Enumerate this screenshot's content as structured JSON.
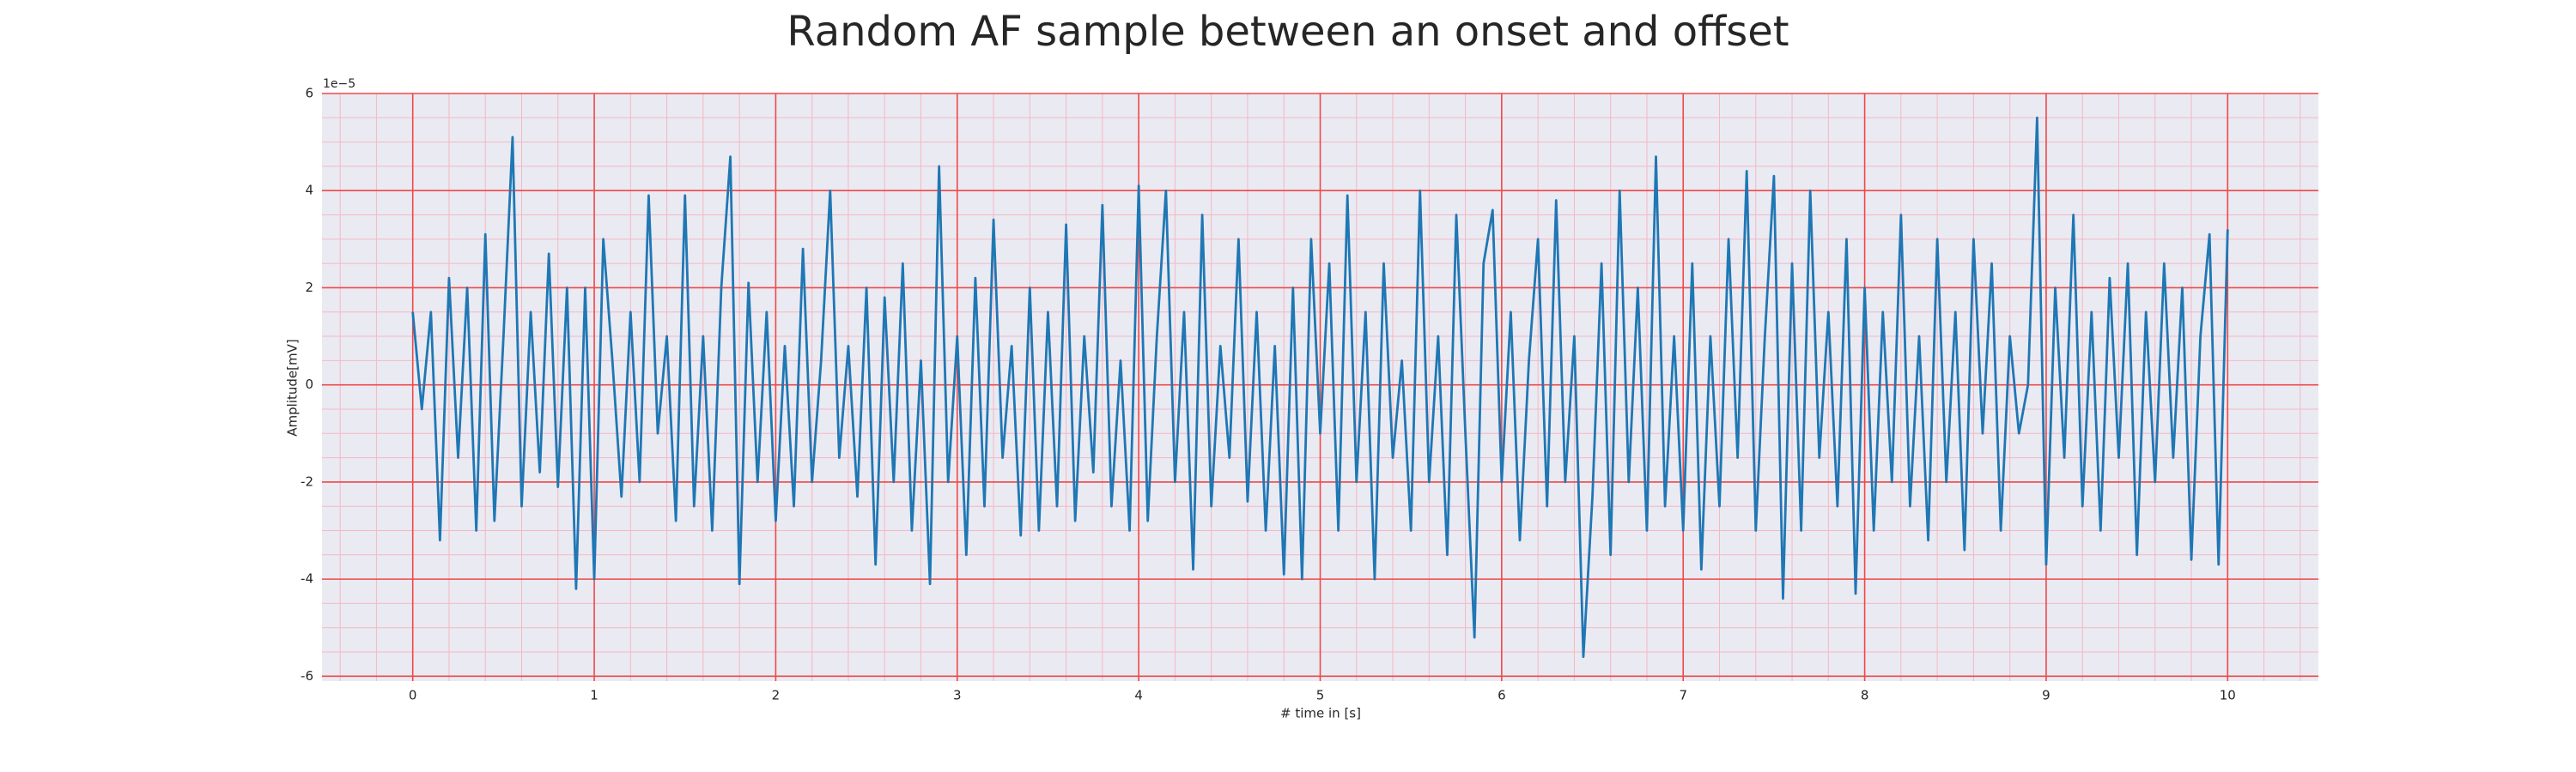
{
  "chart_data": {
    "type": "line",
    "title": "Random AF sample between an onset and offset",
    "xlabel": "# time in [s]",
    "ylabel": "Amplitude[mV]",
    "offset_text": "1e−5",
    "color": "#1f77b4",
    "background": "#eaeaf2",
    "grid": true,
    "grid_color": "#f04848",
    "minor_grid_color": "#f4b8c4",
    "xlim": [
      -0.5,
      10.5
    ],
    "ylim": [
      -6.1,
      6.0
    ],
    "xticks": [
      0,
      1,
      2,
      3,
      4,
      5,
      6,
      7,
      8,
      9,
      10
    ],
    "yticks": [
      -6,
      -4,
      -2,
      0,
      2,
      4,
      6
    ],
    "xminorticks": [
      -0.4,
      -0.2,
      0,
      0.2,
      0.4,
      0.6,
      0.8,
      1,
      1.2,
      1.4,
      1.6,
      1.8,
      2,
      2.2,
      2.4,
      2.6,
      2.8,
      3,
      3.2,
      3.4,
      3.6,
      3.8,
      4,
      4.2,
      4.4,
      4.6,
      4.8,
      5,
      5.2,
      5.4,
      5.6,
      5.8,
      6,
      6.2,
      6.4,
      6.6,
      6.8,
      7,
      7.2,
      7.4,
      7.6,
      7.8,
      8,
      8.2,
      8.4,
      8.6,
      8.8,
      9,
      9.2,
      9.4,
      9.6,
      9.8,
      10,
      10.2,
      10.4
    ],
    "yminorticks": [
      -6,
      -5.5,
      -5,
      -4.5,
      -4,
      -3.5,
      -3,
      -2.5,
      -2,
      -1.5,
      -1,
      -0.5,
      0,
      0.5,
      1,
      1.5,
      2,
      2.5,
      3,
      3.5,
      4,
      4.5,
      5,
      5.5,
      6
    ],
    "x": [
      0,
      0.05,
      0.1,
      0.15,
      0.2,
      0.25,
      0.3,
      0.35,
      0.4,
      0.45,
      0.5,
      0.55,
      0.6,
      0.65,
      0.7,
      0.75,
      0.8,
      0.85,
      0.9,
      0.95,
      1,
      1.05,
      1.1,
      1.15,
      1.2,
      1.25,
      1.3,
      1.35,
      1.4,
      1.45,
      1.5,
      1.55,
      1.6,
      1.65,
      1.7,
      1.75,
      1.8,
      1.85,
      1.9,
      1.95,
      2,
      2.05,
      2.1,
      2.15,
      2.2,
      2.25,
      2.3,
      2.35,
      2.4,
      2.45,
      2.5,
      2.55,
      2.6,
      2.65,
      2.7,
      2.75,
      2.8,
      2.85,
      2.9,
      2.95,
      3,
      3.05,
      3.1,
      3.15,
      3.2,
      3.25,
      3.3,
      3.35,
      3.4,
      3.45,
      3.5,
      3.55,
      3.6,
      3.65,
      3.7,
      3.75,
      3.8,
      3.85,
      3.9,
      3.95,
      4,
      4.05,
      4.1,
      4.15,
      4.2,
      4.25,
      4.3,
      4.35,
      4.4,
      4.45,
      4.5,
      4.55,
      4.6,
      4.65,
      4.7,
      4.75,
      4.8,
      4.85,
      4.9,
      4.95,
      5,
      5.05,
      5.1,
      5.15,
      5.2,
      5.25,
      5.3,
      5.35,
      5.4,
      5.45,
      5.5,
      5.55,
      5.6,
      5.65,
      5.7,
      5.75,
      5.8,
      5.85,
      5.9,
      5.95,
      6,
      6.05,
      6.1,
      6.15,
      6.2,
      6.25,
      6.3,
      6.35,
      6.4,
      6.45,
      6.5,
      6.55,
      6.6,
      6.65,
      6.7,
      6.75,
      6.8,
      6.85,
      6.9,
      6.95,
      7,
      7.05,
      7.1,
      7.15,
      7.2,
      7.25,
      7.3,
      7.35,
      7.4,
      7.45,
      7.5,
      7.55,
      7.6,
      7.65,
      7.7,
      7.75,
      7.8,
      7.85,
      7.9,
      7.95,
      8,
      8.05,
      8.1,
      8.15,
      8.2,
      8.25,
      8.3,
      8.35,
      8.4,
      8.45,
      8.5,
      8.55,
      8.6,
      8.65,
      8.7,
      8.75,
      8.8,
      8.85,
      8.9,
      8.95,
      9,
      9.05,
      9.1,
      9.15,
      9.2,
      9.25,
      9.3,
      9.35,
      9.4,
      9.45,
      9.5,
      9.55,
      9.6,
      9.65,
      9.7,
      9.75,
      9.8,
      9.85,
      9.9,
      9.95,
      10
    ],
    "values": [
      1.5,
      -0.5,
      1.5,
      -3.2,
      2.2,
      -1.5,
      2.0,
      -3.0,
      3.1,
      -2.8,
      1.0,
      5.1,
      -2.5,
      1.5,
      -1.8,
      2.7,
      -2.1,
      2.0,
      -4.2,
      2.0,
      -4.0,
      3.0,
      0.5,
      -2.3,
      1.5,
      -2.0,
      3.9,
      -1.0,
      1.0,
      -2.8,
      3.9,
      -2.5,
      1.0,
      -3.0,
      2.0,
      4.7,
      -4.1,
      2.1,
      -2.0,
      1.5,
      -2.8,
      0.8,
      -2.5,
      2.8,
      -2.0,
      0.5,
      4.0,
      -1.5,
      0.8,
      -2.3,
      2.0,
      -3.7,
      1.8,
      -2.0,
      2.5,
      -3.0,
      0.5,
      -4.1,
      4.5,
      -2.0,
      1.0,
      -3.5,
      2.2,
      -2.5,
      3.4,
      -1.5,
      0.8,
      -3.1,
      2.0,
      -3.0,
      1.5,
      -2.5,
      3.3,
      -2.8,
      1.0,
      -1.8,
      3.7,
      -2.5,
      0.5,
      -3.0,
      4.1,
      -2.8,
      1.0,
      4.0,
      -2.0,
      1.5,
      -3.8,
      3.5,
      -2.5,
      0.8,
      -1.5,
      3.0,
      -2.4,
      1.5,
      -3.0,
      0.8,
      -3.9,
      2.0,
      -4.0,
      3.0,
      -1.0,
      2.5,
      -3.0,
      3.9,
      -2.0,
      1.5,
      -4.0,
      2.5,
      -1.5,
      0.5,
      -3.0,
      4.0,
      -2.0,
      1.0,
      -3.5,
      3.5,
      -1.0,
      -5.2,
      2.5,
      3.6,
      -2.0,
      1.5,
      -3.2,
      0.5,
      3.0,
      -2.5,
      3.8,
      -2.0,
      1.0,
      -5.6,
      -2.3,
      2.5,
      -3.5,
      4.0,
      -2.0,
      2.0,
      -3.0,
      4.7,
      -2.5,
      1.0,
      -3.0,
      2.5,
      -3.8,
      1.0,
      -2.5,
      3.0,
      -1.5,
      4.4,
      -3.0,
      1.0,
      4.3,
      -4.4,
      2.5,
      -3.0,
      4.0,
      -1.5,
      1.5,
      -2.5,
      3.0,
      -4.3,
      2.0,
      -3.0,
      1.5,
      -2.0,
      3.5,
      -2.5,
      1.0,
      -3.2,
      3.0,
      -2.0,
      1.5,
      -3.4,
      3.0,
      -1.0,
      2.5,
      -3.0,
      1.0,
      -1.0,
      0.0,
      5.5,
      -3.7,
      2.0,
      -1.5,
      3.5,
      -2.5,
      1.5,
      -3.0,
      2.2,
      -1.5,
      2.5,
      -3.5,
      1.5,
      -2.0,
      2.5,
      -1.5,
      2.0,
      -3.6,
      1.0,
      3.1,
      -3.7,
      3.2
    ]
  }
}
